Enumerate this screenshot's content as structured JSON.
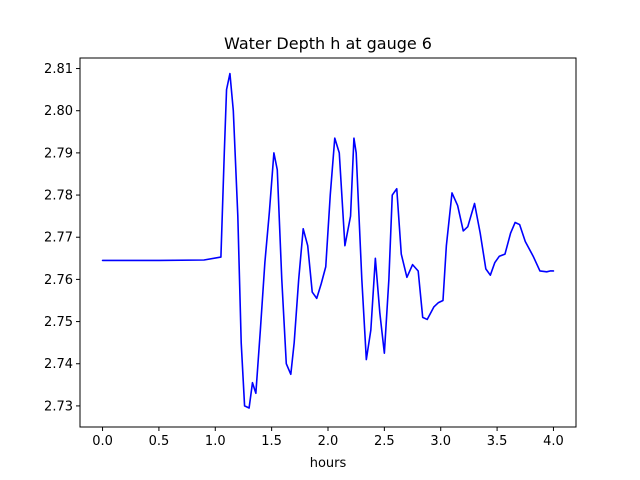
{
  "chart_data": {
    "type": "line",
    "title": "Water Depth h at gauge 6",
    "xlabel": "hours",
    "ylabel": "",
    "xlim": [
      -0.2,
      4.2
    ],
    "ylim": [
      2.725,
      2.8125
    ],
    "x_ticks": [
      "0.0",
      "0.5",
      "1.0",
      "1.5",
      "2.0",
      "2.5",
      "3.0",
      "3.5",
      "4.0"
    ],
    "y_ticks": [
      "2.73",
      "2.74",
      "2.75",
      "2.76",
      "2.77",
      "2.78",
      "2.79",
      "2.80",
      "2.81"
    ],
    "grid": false,
    "legend": "none",
    "series": [
      {
        "color": "#0000ff",
        "x": [
          0.0,
          0.5,
          0.9,
          1.05,
          1.08,
          1.1,
          1.13,
          1.16,
          1.2,
          1.23,
          1.26,
          1.3,
          1.33,
          1.36,
          1.4,
          1.44,
          1.48,
          1.52,
          1.55,
          1.59,
          1.63,
          1.67,
          1.7,
          1.74,
          1.78,
          1.82,
          1.86,
          1.9,
          1.94,
          1.98,
          2.02,
          2.06,
          2.1,
          2.15,
          2.2,
          2.23,
          2.25,
          2.3,
          2.34,
          2.38,
          2.42,
          2.46,
          2.5,
          2.54,
          2.57,
          2.61,
          2.65,
          2.7,
          2.75,
          2.8,
          2.84,
          2.88,
          2.94,
          2.98,
          3.02,
          3.05,
          3.1,
          3.15,
          3.2,
          3.24,
          3.3,
          3.35,
          3.4,
          3.44,
          3.48,
          3.52,
          3.57,
          3.62,
          3.66,
          3.7,
          3.75,
          3.82,
          3.88,
          3.94,
          3.97,
          4.0
        ],
        "values": [
          2.7645,
          2.7645,
          2.7646,
          2.7653,
          2.79,
          2.805,
          2.8088,
          2.8,
          2.775,
          2.745,
          2.73,
          2.7295,
          2.7355,
          2.733,
          2.748,
          2.764,
          2.776,
          2.79,
          2.786,
          2.76,
          2.74,
          2.7375,
          2.745,
          2.76,
          2.772,
          2.768,
          2.757,
          2.7555,
          2.759,
          2.763,
          2.78,
          2.7935,
          2.79,
          2.768,
          2.775,
          2.7935,
          2.79,
          2.76,
          2.741,
          2.748,
          2.765,
          2.752,
          2.7425,
          2.76,
          2.78,
          2.7815,
          2.766,
          2.7605,
          2.7635,
          2.762,
          2.751,
          2.7505,
          2.7535,
          2.7545,
          2.755,
          2.768,
          2.7805,
          2.7775,
          2.7715,
          2.7725,
          2.778,
          2.771,
          2.7625,
          2.761,
          2.764,
          2.7655,
          2.766,
          2.771,
          2.7735,
          2.773,
          2.769,
          2.7655,
          2.762,
          2.7618,
          2.762,
          2.762
        ]
      }
    ]
  }
}
